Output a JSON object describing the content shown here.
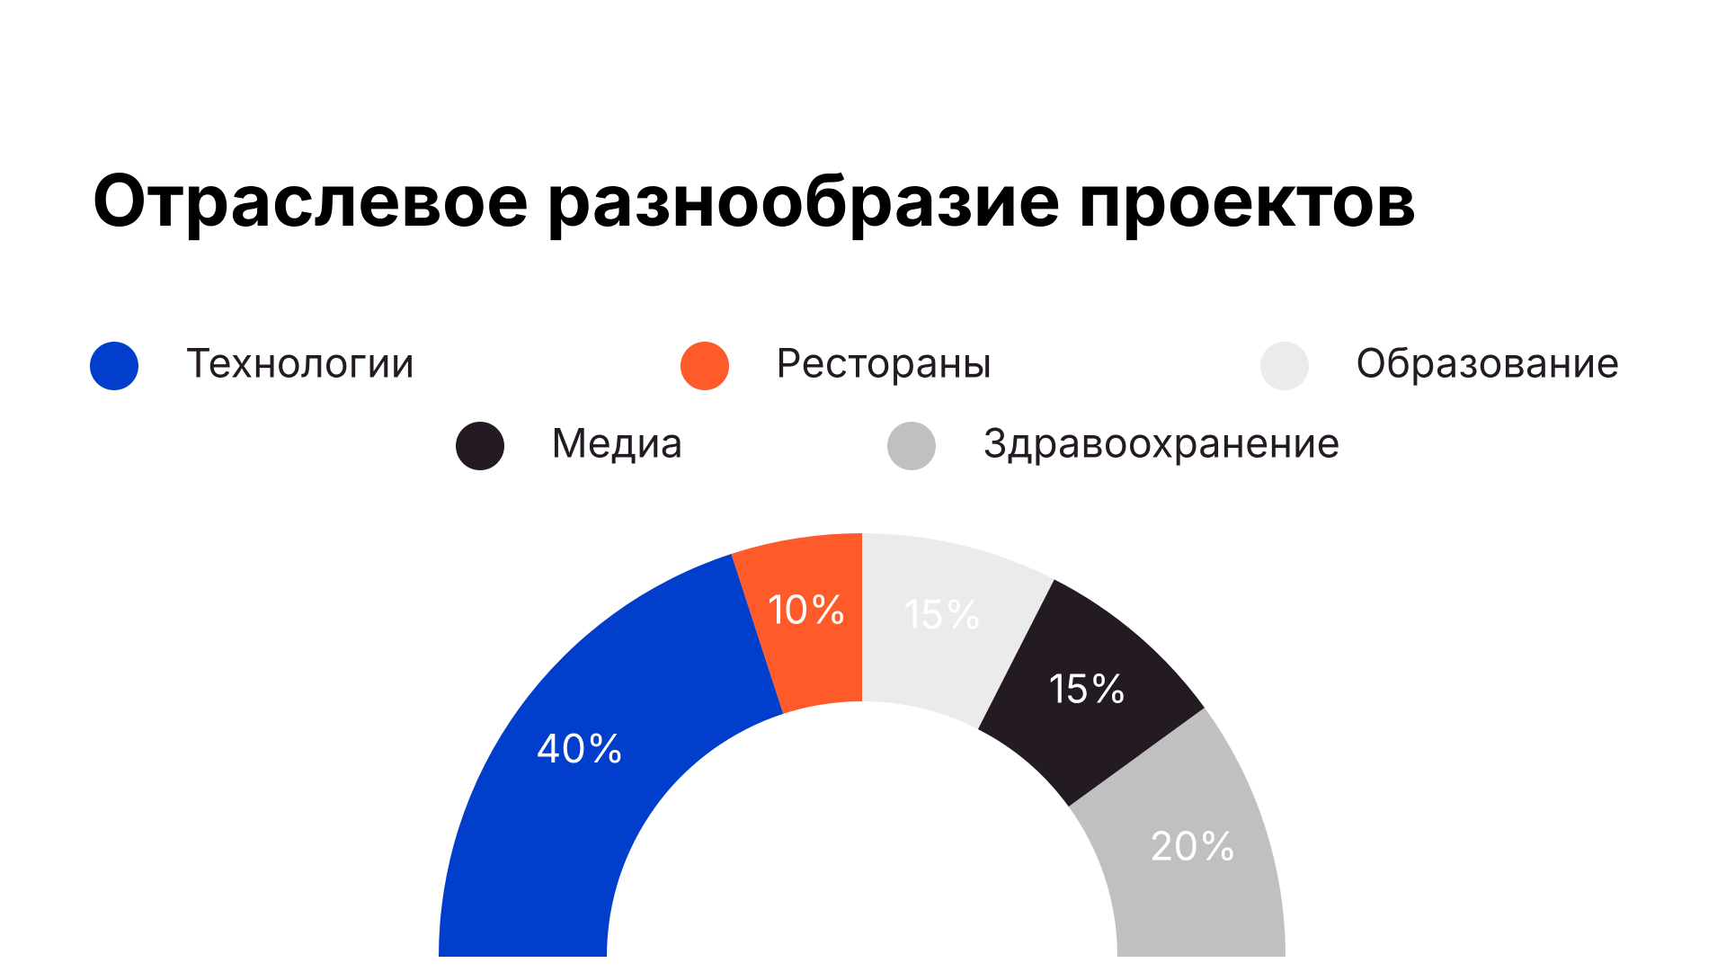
{
  "chart_data": {
    "type": "half-donut",
    "title": "Отраслевое разнообразие проектов",
    "categories": [
      "Технологии",
      "Рестораны",
      "Образование",
      "Медиа",
      "Здравоохранение"
    ],
    "values": [
      40,
      10,
      15,
      15,
      20
    ],
    "value_labels": [
      "40%",
      "10%",
      "15%",
      "15%",
      "20%"
    ],
    "colors": [
      "#003ecb",
      "#ff5a2a",
      "#ebebeb",
      "#231a24",
      "#c0c0c0"
    ]
  }
}
